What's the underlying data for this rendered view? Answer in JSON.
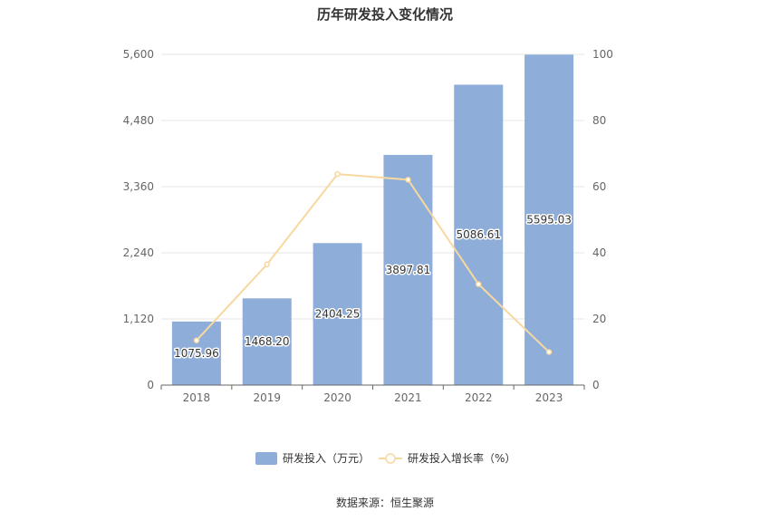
{
  "chart_data": {
    "type": "bar",
    "title": "历年研发投入变化情况",
    "categories": [
      "2018",
      "2019",
      "2020",
      "2021",
      "2022",
      "2023"
    ],
    "series": [
      {
        "name": "研发投入（万元）",
        "type": "bar",
        "axis": "left",
        "values": [
          1075.96,
          1468.2,
          2404.25,
          3897.81,
          5086.61,
          5595.03
        ],
        "labels": [
          "1075.96",
          "1468.20",
          "2404.25",
          "3897.81",
          "5086.61",
          "5595.03"
        ],
        "color": "#8eadd9"
      },
      {
        "name": "研发投入增长率（%）",
        "type": "line",
        "axis": "right",
        "values": [
          13.5,
          36.5,
          63.8,
          62.1,
          30.5,
          10.0
        ],
        "color": "#f7d8a0"
      }
    ],
    "y_left": {
      "ylim": [
        0,
        5600
      ],
      "ticks": [
        0,
        1120,
        2240,
        3360,
        4480,
        5600
      ],
      "tick_labels": [
        "0",
        "1,120",
        "2,240",
        "3,360",
        "4,480",
        "5,600"
      ]
    },
    "y_right": {
      "ylim": [
        0,
        100
      ],
      "ticks": [
        0,
        20,
        40,
        60,
        80,
        100
      ],
      "tick_labels": [
        "0",
        "20",
        "40",
        "60",
        "80",
        "100"
      ]
    },
    "grid": true,
    "legend_position": "bottom"
  },
  "source_text": "数据来源：恒生聚源"
}
